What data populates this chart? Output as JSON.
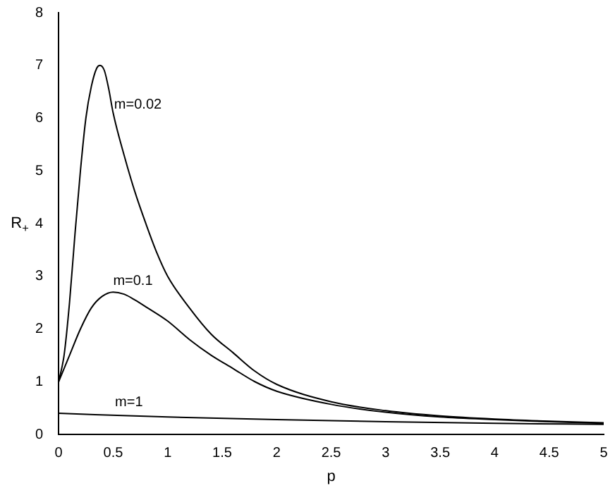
{
  "chart_data": {
    "type": "line",
    "xlabel": "p",
    "ylabel": "R$_{+}$",
    "xlim": [
      0,
      5
    ],
    "ylim": [
      0,
      8
    ],
    "xticks": [
      0,
      0.5,
      1,
      1.5,
      2,
      2.5,
      3,
      3.5,
      4,
      4.5,
      5
    ],
    "yticks": [
      0,
      1,
      2,
      3,
      4,
      5,
      6,
      7,
      8
    ],
    "grid": false,
    "legend": false,
    "marker": "none",
    "line_style": "solid",
    "series": [
      {
        "name": "m=0.02",
        "color": "#000000",
        "x": [
          0,
          0.05,
          0.1,
          0.15,
          0.2,
          0.25,
          0.3,
          0.35,
          0.38,
          0.42,
          0.46,
          0.5,
          0.6,
          0.7,
          0.8,
          0.9,
          1,
          1.2,
          1.4,
          1.6,
          1.8,
          2,
          2.5,
          3,
          3.5,
          4,
          4.5,
          5
        ],
        "values": [
          1,
          1.5,
          2.5,
          3.8,
          5,
          6,
          6.6,
          6.95,
          7,
          6.9,
          6.55,
          6.1,
          5.3,
          4.6,
          4,
          3.45,
          3,
          2.4,
          1.9,
          1.55,
          1.2,
          0.95,
          0.62,
          0.45,
          0.35,
          0.29,
          0.25,
          0.22
        ]
      },
      {
        "name": "m=0.1",
        "color": "#000000",
        "x": [
          0,
          0.1,
          0.2,
          0.3,
          0.4,
          0.5,
          0.6,
          0.7,
          0.8,
          1,
          1.2,
          1.4,
          1.6,
          1.8,
          2,
          2.5,
          3,
          3.5,
          4,
          4.5,
          5
        ],
        "values": [
          1,
          1.5,
          2,
          2.4,
          2.62,
          2.7,
          2.66,
          2.55,
          2.42,
          2.15,
          1.8,
          1.5,
          1.25,
          1,
          0.82,
          0.57,
          0.42,
          0.33,
          0.28,
          0.24,
          0.21
        ]
      },
      {
        "name": "m=1",
        "color": "#000000",
        "x": [
          0,
          1,
          2,
          3,
          4,
          5
        ],
        "values": [
          0.4,
          0.33,
          0.28,
          0.24,
          0.21,
          0.19
        ]
      }
    ]
  }
}
